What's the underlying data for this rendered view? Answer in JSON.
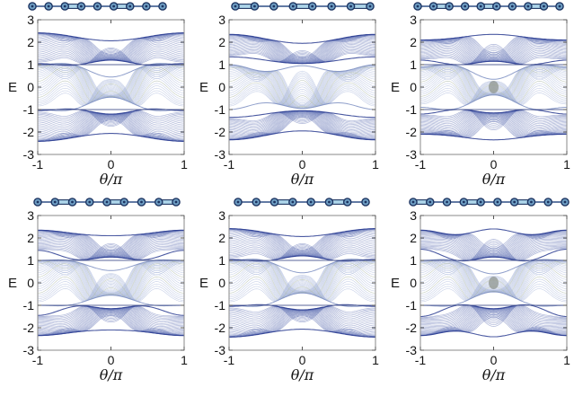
{
  "figure": {
    "title": "",
    "rows": 2,
    "cols": 3,
    "background": "#ffffff",
    "colors": {
      "band_outer": "#33479e",
      "band_outer_edge": "#2b3d92",
      "band_mid": "#a3b2d8",
      "band_mid_edge": "#8294c4",
      "green_accent": "#9aa896",
      "flat_line": "#47548e",
      "axis_box": "#8a8a8a",
      "tick": "#555555",
      "label": "#141414",
      "knot": "#8f968f",
      "chain_site_fill": "#6f9fc4",
      "chain_site_stroke": "#1d3461",
      "chain_bond": "#2f4f85",
      "chain_strong_fill": "#aed6ea"
    }
  },
  "chart_data": [
    {
      "type": "line",
      "position": [
        0,
        0
      ],
      "xlabel": "θ/π",
      "ylabel": "E",
      "xlim": [
        -1,
        1
      ],
      "ylim": [
        -3,
        3
      ],
      "xtick_labels": [
        "-1",
        "0",
        "1"
      ],
      "ytick_labels": [
        "3",
        "2",
        "1",
        "0",
        "-1",
        "-2",
        "-3"
      ],
      "xticks": [
        -1,
        0,
        1
      ],
      "yticks": [
        3,
        2,
        1,
        0,
        -1,
        -2,
        -3
      ],
      "bands": {
        "upper_top": {
          "a": 2.24,
          "b": -0.175,
          "c": 0
        },
        "upper_bottom": {
          "a": 1.0525,
          "b": 0.075,
          "c": 0.0725
        },
        "middle_halfwidth": {
          "a": 0.8525,
          "b": -0.275,
          "c": -0.1275
        }
      },
      "edge_state_energies": [
        1,
        -1
      ],
      "center_knot": false,
      "chain": {
        "sites": 9,
        "x_start": 36,
        "x_end": 181,
        "strong_bonds": [
          2,
          5
        ]
      }
    },
    {
      "type": "line",
      "position": [
        0,
        1
      ],
      "xlabel": "θ/π",
      "ylabel": "E",
      "xlim": [
        -1,
        1
      ],
      "ylim": [
        -3,
        3
      ],
      "xtick_labels": [
        "-1",
        "0",
        "1"
      ],
      "ytick_labels": [
        "3",
        "2",
        "1",
        "0",
        "-1",
        "-2",
        "-3"
      ],
      "xticks": [
        -1,
        0,
        1
      ],
      "yticks": [
        3,
        2,
        1,
        0,
        -1,
        -2,
        -3
      ],
      "bands": {
        "upper_top": {
          "a": 2.15,
          "b": -0.2,
          "c": 0
        },
        "upper_bottom": {
          "a": 1.2,
          "b": -0.15,
          "c": 0
        },
        "middle_halfwidth": {
          "a": 0.8375,
          "b": -0.025,
          "c": 0.1375
        }
      },
      "edge_state_energies": [],
      "center_knot": false,
      "chain": {
        "sites": 8,
        "x_start": 49,
        "x_end": 199,
        "strong_bonds": [
          0,
          3,
          6
        ]
      }
    },
    {
      "type": "line",
      "position": [
        0,
        2
      ],
      "xlabel": "θ/π",
      "ylabel": "E",
      "xlim": [
        -1,
        1
      ],
      "ylim": [
        -3,
        3
      ],
      "xtick_labels": [
        "-1",
        "0",
        "1"
      ],
      "ytick_labels": [
        "3",
        "2",
        "1",
        "0",
        "-1",
        "-2",
        "-3"
      ],
      "xticks": [
        -1,
        0,
        1
      ],
      "yticks": [
        3,
        2,
        1,
        0,
        -1,
        -2,
        -3
      ],
      "bands": {
        "upper_top": {
          "a": 2.2125,
          "b": 0.125,
          "c": 0.0125
        },
        "upper_bottom": {
          "a": 1.0875,
          "b": -0.025,
          "c": 0.0875
        },
        "middle_halfwidth": {
          "a": 0.7875,
          "b": -0.275,
          "c": -0.1625
        }
      },
      "edge_state_energies": [
        1,
        -1
      ],
      "center_knot": true,
      "chain": {
        "sites": 10,
        "x_start": 39,
        "x_end": 197,
        "strong_bonds": [
          1,
          4,
          7
        ]
      }
    },
    {
      "type": "line",
      "position": [
        1,
        0
      ],
      "xlabel": "θ/π",
      "ylabel": "E",
      "xlim": [
        -1,
        1
      ],
      "ylim": [
        -3,
        3
      ],
      "xtick_labels": [
        "-1",
        "0",
        "1"
      ],
      "ytick_labels": [
        "3",
        "2",
        "1",
        "0",
        "-1",
        "-2",
        "-3"
      ],
      "xticks": [
        -1,
        0,
        1
      ],
      "yticks": [
        3,
        2,
        1,
        0,
        -1,
        -2,
        -3
      ],
      "bands": {
        "upper_top": {
          "a": 2.2125,
          "b": -0.125,
          "c": 0.0125
        },
        "upper_bottom": {
          "a": 1.175,
          "b": -0.15,
          "c": 0.125
        },
        "middle_halfwidth": {
          "a": 0.8625,
          "b": -0.225,
          "c": -0.0875
        }
      },
      "edge_state_energies": [
        1,
        -1
      ],
      "center_knot": false,
      "chain": {
        "sites": 9,
        "x_start": 42,
        "x_end": 196,
        "strong_bonds": [
          1,
          4,
          7
        ]
      }
    },
    {
      "type": "line",
      "position": [
        1,
        1
      ],
      "xlabel": "θ/π",
      "ylabel": "E",
      "xlim": [
        -1,
        1
      ],
      "ylim": [
        -3,
        3
      ],
      "xtick_labels": [
        "-1",
        "0",
        "1"
      ],
      "ytick_labels": [
        "3",
        "2",
        "1",
        "0",
        "-1",
        "-2",
        "-3"
      ],
      "xticks": [
        -1,
        0,
        1
      ],
      "yticks": [
        3,
        2,
        1,
        0,
        -1,
        -2,
        -3
      ],
      "bands": {
        "upper_top": {
          "a": 2.24,
          "b": -0.175,
          "c": 0
        },
        "upper_bottom": {
          "a": 1.0525,
          "b": 0.075,
          "c": 0.0725
        },
        "middle_halfwidth": {
          "a": 0.8525,
          "b": -0.275,
          "c": -0.1275
        }
      },
      "edge_state_energies": [
        1,
        -1
      ],
      "center_knot": false,
      "chain": {
        "sites": 8,
        "x_start": 52,
        "x_end": 194,
        "strong_bonds": [
          2,
          5
        ]
      }
    },
    {
      "type": "line",
      "position": [
        1,
        2
      ],
      "xlabel": "θ/π",
      "ylabel": "E",
      "xlim": [
        -1,
        1
      ],
      "ylim": [
        -3,
        3
      ],
      "xtick_labels": [
        "-1",
        "0",
        "1"
      ],
      "ytick_labels": [
        "3",
        "2",
        "1",
        "0",
        "-1",
        "-2",
        "-3"
      ],
      "xticks": [
        -1,
        0,
        1
      ],
      "yticks": [
        3,
        2,
        1,
        0,
        -1,
        -2,
        -3
      ],
      "bands": {
        "upper_top": {
          "a": 2.2625,
          "b": 0.025,
          "c": 0.1125
        },
        "upper_bottom": {
          "a": 1.1625,
          "b": -0.175,
          "c": 0.1625
        },
        "middle_halfwidth": {
          "a": 0.825,
          "b": -0.3,
          "c": -0.125
        }
      },
      "edge_state_energies": [
        1,
        -1
      ],
      "center_knot": true,
      "chain": {
        "sites": 10,
        "x_start": 34,
        "x_end": 203,
        "strong_bonds": [
          0,
          3,
          6
        ]
      }
    }
  ]
}
